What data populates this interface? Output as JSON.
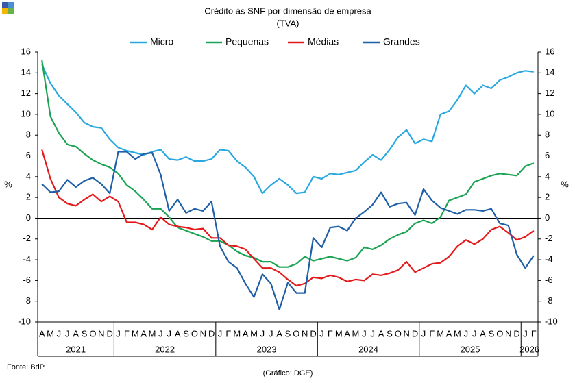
{
  "chart_data": {
    "type": "line",
    "title": "Crédito às SNF por dimensão de empresa",
    "subtitle": "(TVA)",
    "ylabel": "%",
    "y2label": "%",
    "source": "Fonte: BdP",
    "credit": "(Gráfico: DGE)",
    "categories": [
      "A",
      "M",
      "J",
      "J",
      "A",
      "S",
      "O",
      "N",
      "D",
      "J",
      "F",
      "M",
      "A",
      "M",
      "J",
      "J",
      "A",
      "S",
      "O",
      "N",
      "D",
      "J",
      "F",
      "M",
      "A",
      "M",
      "J",
      "J",
      "A",
      "S",
      "O",
      "N",
      "D",
      "J",
      "F",
      "M",
      "A",
      "M",
      "J",
      "J",
      "A",
      "S",
      "O",
      "N",
      "D",
      "J",
      "F",
      "M",
      "A",
      "M",
      "J",
      "J",
      "A",
      "S",
      "O",
      "N",
      "D",
      "J",
      "F"
    ],
    "years": [
      "2021",
      "2022",
      "2023",
      "2024",
      "2025",
      "2026"
    ],
    "ylim": [
      -10,
      16
    ],
    "yticks": [
      -10,
      -8,
      -6,
      -4,
      -2,
      0,
      2,
      4,
      6,
      8,
      10,
      12,
      14,
      16
    ],
    "y2lim": [
      -10,
      16
    ],
    "y2ticks": [
      -10,
      -8,
      -6,
      -4,
      -2,
      0,
      2,
      4,
      6,
      8,
      10,
      12,
      14,
      16
    ],
    "grid": false,
    "legend": "top",
    "series": [
      {
        "name": "Micro",
        "color": "#29a8e0",
        "values": [
          14.8,
          13,
          11.8,
          11,
          10.2,
          9.2,
          8.8,
          8.7,
          7.6,
          6.8,
          6.5,
          6.3,
          6.1,
          6.4,
          6.6,
          5.7,
          5.6,
          5.9,
          5.5,
          5.5,
          5.7,
          6.6,
          6.5,
          5.5,
          4.9,
          4.0,
          2.4,
          3.2,
          3.8,
          3.2,
          2.4,
          2.5,
          4.0,
          3.8,
          4.3,
          4.2,
          4.4,
          4.6,
          5.4,
          6.1,
          5.6,
          6.6,
          7.8,
          8.5,
          7.2,
          7.6,
          7.4,
          10.0,
          10.3,
          11.4,
          12.8,
          12.0,
          12.8,
          12.5,
          13.3,
          13.6,
          14.0,
          14.2,
          14.1
        ]
      },
      {
        "name": "Pequenas",
        "color": "#1aa352",
        "values": [
          15.2,
          9.8,
          8.2,
          7.1,
          6.9,
          6.2,
          5.6,
          5.2,
          4.9,
          4.3,
          3.2,
          2.6,
          1.8,
          0.9,
          0.9,
          0.1,
          -0.9,
          -1.2,
          -1.5,
          -1.8,
          -2.2,
          -2.2,
          -2.6,
          -3.2,
          -3.6,
          -3.8,
          -4.2,
          -4.2,
          -4.7,
          -4.7,
          -4.4,
          -3.7,
          -4.1,
          -3.9,
          -3.7,
          -3.9,
          -4.1,
          -3.8,
          -2.8,
          -3.0,
          -2.6,
          -2.0,
          -1.6,
          -1.3,
          -0.5,
          -0.2,
          -0.5,
          0.1,
          1.7,
          2.0,
          2.3,
          3.5,
          3.8,
          4.1,
          4.3,
          4.2,
          4.1,
          5.0,
          5.3
        ]
      },
      {
        "name": "Médias",
        "color": "#e31a1c",
        "values": [
          6.6,
          3.8,
          2.0,
          1.4,
          1.2,
          1.8,
          2.3,
          1.6,
          2.1,
          1.6,
          -0.4,
          -0.4,
          -0.6,
          -1.1,
          0.1,
          -0.6,
          -0.8,
          -0.9,
          -1.1,
          -1.0,
          -1.9,
          -1.9,
          -2.6,
          -2.7,
          -3.0,
          -3.9,
          -4.8,
          -4.8,
          -5.2,
          -5.9,
          -6.5,
          -6.3,
          -5.7,
          -5.8,
          -5.5,
          -5.7,
          -6.1,
          -5.9,
          -6.0,
          -5.4,
          -5.5,
          -5.3,
          -5.0,
          -4.2,
          -5.2,
          -4.8,
          -4.4,
          -4.3,
          -3.7,
          -2.7,
          -2.1,
          -2.5,
          -2.0,
          -1.1,
          -0.8,
          -1.4,
          -2.1,
          -1.8,
          -1.2
        ]
      },
      {
        "name": "Grandes",
        "color": "#1f5fa8",
        "values": [
          3.3,
          2.5,
          2.6,
          3.7,
          3.0,
          3.6,
          3.9,
          3.3,
          2.4,
          6.4,
          6.4,
          5.7,
          6.2,
          6.3,
          4.2,
          0.7,
          1.8,
          0.5,
          0.9,
          0.7,
          1.6,
          -2.7,
          -4.2,
          -4.8,
          -6.3,
          -7.6,
          -5.4,
          -6.3,
          -8.8,
          -6.2,
          -7.2,
          -7.2,
          -1.9,
          -2.8,
          -0.9,
          -0.8,
          -1.2,
          0.0,
          0.6,
          1.3,
          2.5,
          1.1,
          1.4,
          1.5,
          0.3,
          2.8,
          1.7,
          1.0,
          0.7,
          0.4,
          0.8,
          0.8,
          0.7,
          0.9,
          -0.5,
          -0.7,
          -3.5,
          -4.8,
          -3.6
        ]
      }
    ]
  }
}
